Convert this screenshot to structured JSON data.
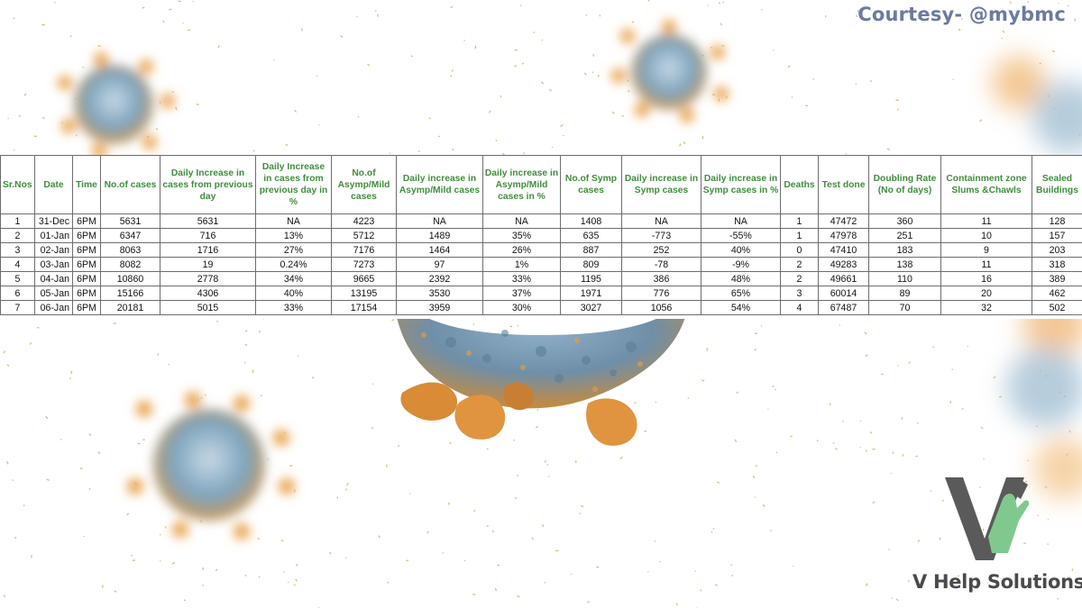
{
  "courtesy": "Courtesy- @mybmc",
  "brand": {
    "name": "V Help Solutions"
  },
  "colors": {
    "header_text": "#3f8e3c",
    "courtesy_text": "#6b7aa1",
    "logo_grey": "#5a5a5a",
    "logo_green": "#7fc98e"
  },
  "table": {
    "headers": [
      "Sr.Nos",
      "Date",
      "Time",
      "No.of cases",
      "Daily Increase in cases from previous day",
      "Daily Increase in cases from previous day in %",
      "No.of Asymp/Mild cases",
      "Daily increase in Asymp/Mild cases",
      "Daily increase in Asymp/Mild cases in %",
      "No.of Symp cases",
      "Daily increase in Symp cases",
      "Daily increase in Symp cases in %",
      "Deaths",
      "Test done",
      "Doubling Rate (No of days)",
      "Containment zone Slums &Chawls",
      "Sealed Buildings"
    ],
    "rows": [
      [
        "1",
        "31-Dec",
        "6PM",
        "5631",
        "5631",
        "NA",
        "4223",
        "NA",
        "NA",
        "1408",
        "NA",
        "NA",
        "1",
        "47472",
        "360",
        "11",
        "128"
      ],
      [
        "2",
        "01-Jan",
        "6PM",
        "6347",
        "716",
        "13%",
        "5712",
        "1489",
        "35%",
        "635",
        "-773",
        "-55%",
        "1",
        "47978",
        "251",
        "10",
        "157"
      ],
      [
        "3",
        "02-Jan",
        "6PM",
        "8063",
        "1716",
        "27%",
        "7176",
        "1464",
        "26%",
        "887",
        "252",
        "40%",
        "0",
        "47410",
        "183",
        "9",
        "203"
      ],
      [
        "4",
        "03-Jan",
        "6PM",
        "8082",
        "19",
        "0.24%",
        "7273",
        "97",
        "1%",
        "809",
        "-78",
        "-9%",
        "2",
        "49283",
        "138",
        "11",
        "318"
      ],
      [
        "5",
        "04-Jan",
        "6PM",
        "10860",
        "2778",
        "34%",
        "9665",
        "2392",
        "33%",
        "1195",
        "386",
        "48%",
        "2",
        "49661",
        "110",
        "16",
        "389"
      ],
      [
        "6",
        "05-Jan",
        "6PM",
        "15166",
        "4306",
        "40%",
        "13195",
        "3530",
        "37%",
        "1971",
        "776",
        "65%",
        "3",
        "60014",
        "89",
        "20",
        "462"
      ],
      [
        "7",
        "06-Jan",
        "6PM",
        "20181",
        "5015",
        "33%",
        "17154",
        "3959",
        "30%",
        "3027",
        "1056",
        "54%",
        "4",
        "67487",
        "70",
        "32",
        "502"
      ]
    ]
  }
}
